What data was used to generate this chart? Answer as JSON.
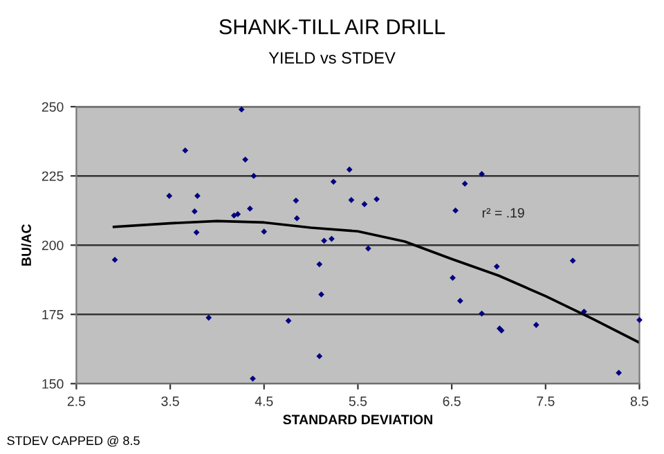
{
  "chart_data": {
    "type": "scatter",
    "title": "SHANK-TILL AIR DRILL",
    "subtitle": "YIELD vs STDEV",
    "xlabel": "STANDARD DEVIATION",
    "ylabel": "BU/AC",
    "annotations": [
      "r² = .19",
      "STDEV CAPPED @ 8.5"
    ],
    "xlim": [
      2.5,
      8.5
    ],
    "xticks": [
      2.5,
      3.5,
      4.5,
      5.5,
      6.5,
      7.5,
      8.5
    ],
    "ylim": [
      150,
      250
    ],
    "yticks": [
      150,
      175,
      200,
      225,
      250
    ],
    "grid": "y",
    "marker": "diamond",
    "legend": false,
    "series": [
      {
        "color": "#000080",
        "x": [
          2.91,
          3.66,
          3.49,
          3.79,
          3.76,
          3.78,
          3.91,
          4.3,
          4.39,
          4.18,
          4.22,
          4.35,
          4.5,
          4.38,
          4.76,
          4.84,
          4.85,
          5.09,
          5.11,
          5.09,
          5.14,
          5.22,
          5.24,
          5.41,
          5.43,
          4.26,
          5.57,
          5.7,
          5.61,
          6.54,
          6.64,
          6.82,
          6.51,
          6.59,
          6.82,
          6.98,
          7.01,
          7.03,
          7.4,
          7.79,
          7.91,
          8.28,
          8.5
        ],
        "values": [
          194.7,
          234.2,
          217.8,
          217.8,
          212.2,
          204.6,
          173.8,
          230.9,
          225,
          210.7,
          211.2,
          213.2,
          204.9,
          151.8,
          172.7,
          216.1,
          209.7,
          193.1,
          182.2,
          159.9,
          201.6,
          202.3,
          222.9,
          227.3,
          216.3,
          249,
          214.8,
          216.6,
          198.8,
          212.5,
          222.2,
          225.7,
          188.2,
          179.9,
          175.3,
          192.3,
          169.9,
          169.2,
          171.2,
          194.4,
          176,
          153.9,
          173
        ]
      },
      {
        "type": "line",
        "color": "#000000",
        "marker": "none",
        "x": [
          2.9,
          3.5,
          4,
          4.5,
          5,
          5.5,
          6,
          6.5,
          7,
          7.5,
          8,
          8.5
        ],
        "values": [
          206.6,
          207.9,
          208.7,
          208.2,
          206.3,
          205,
          201.3,
          195,
          189,
          181.6,
          173.4,
          164.8
        ]
      }
    ]
  }
}
